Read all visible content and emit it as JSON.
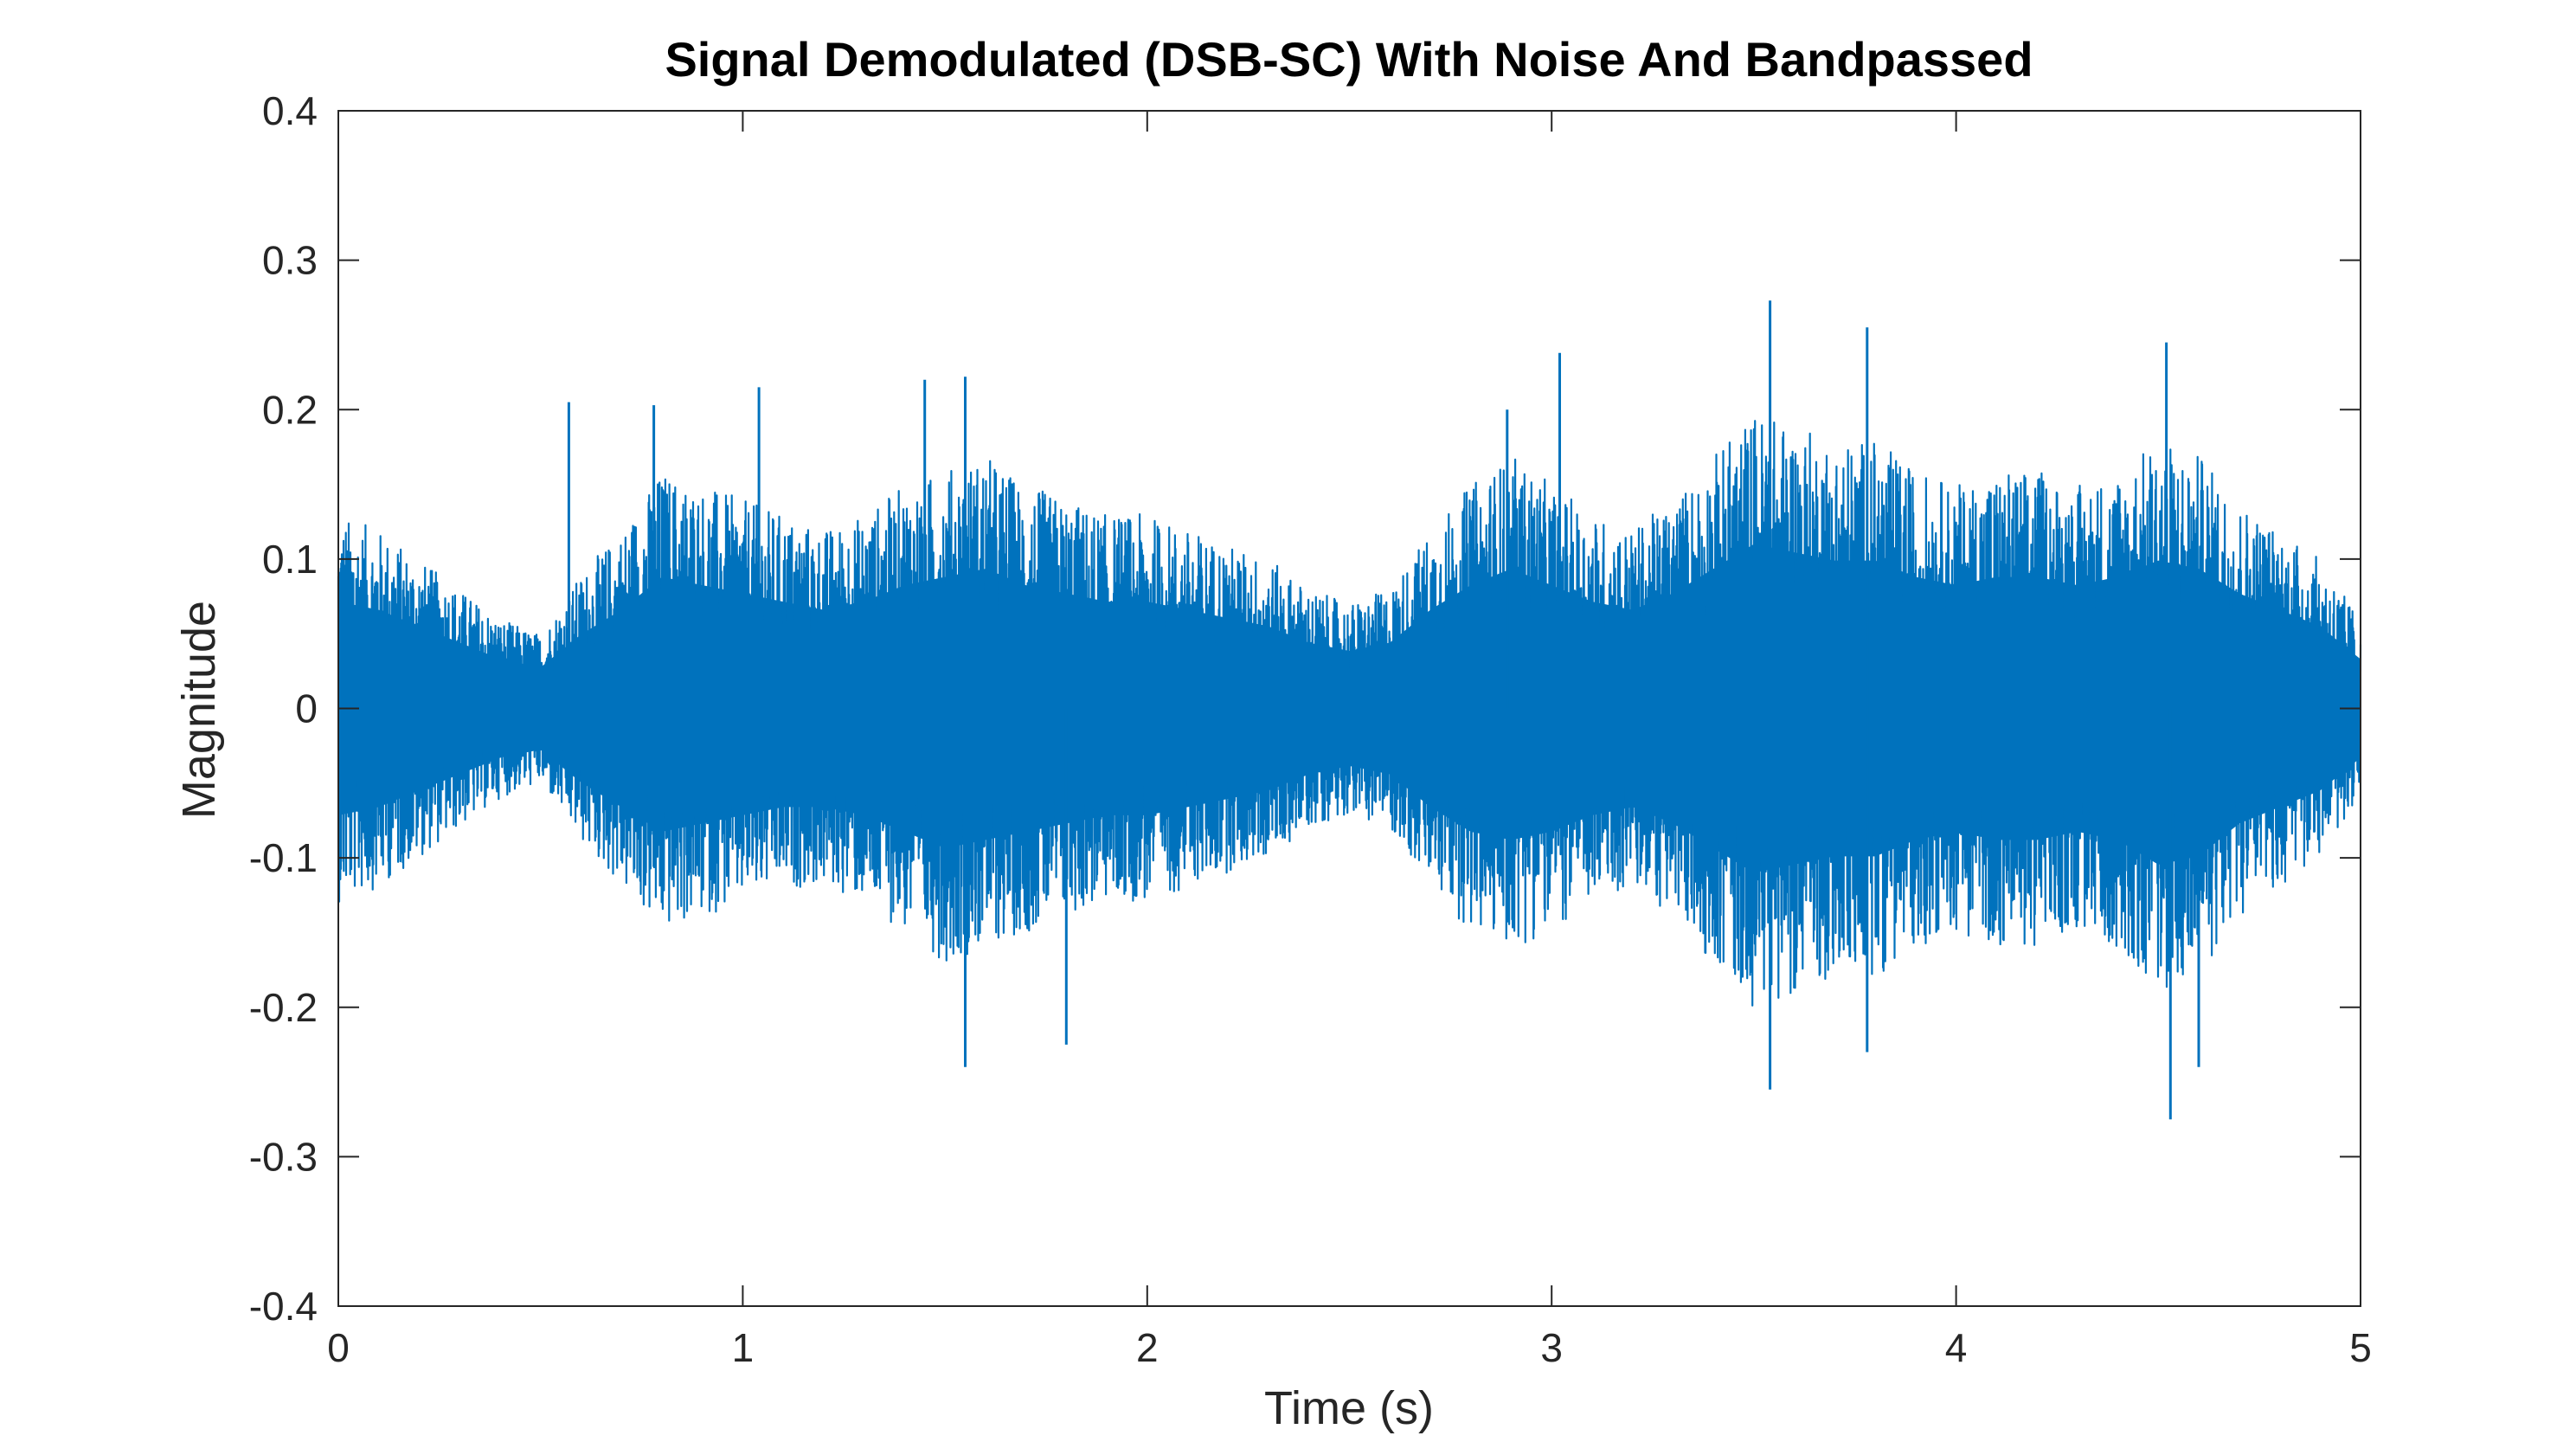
{
  "chart_data": {
    "type": "line",
    "title": "Signal Demodulated (DSB-SC) With Noise And Bandpassed",
    "xlabel": "Time (s)",
    "ylabel": "Magnitude",
    "xlim": [
      0,
      5
    ],
    "ylim": [
      -0.4,
      0.4
    ],
    "x_ticks": [
      0,
      1,
      2,
      3,
      4,
      5
    ],
    "x_tick_labels": [
      "0",
      "1",
      "2",
      "3",
      "4",
      "5"
    ],
    "y_ticks": [
      -0.4,
      -0.3,
      -0.2,
      -0.1,
      0,
      0.1,
      0.2,
      0.3,
      0.4
    ],
    "y_tick_labels": [
      "-0.4",
      "-0.3",
      "-0.2",
      "-0.1",
      "0",
      "0.1",
      "0.2",
      "0.3",
      "0.4"
    ],
    "grid": false,
    "box": true,
    "series": [
      {
        "color": "#0072BD",
        "envelope": {
          "t": [
            0.0,
            0.1,
            0.2,
            0.3,
            0.4,
            0.5,
            0.6,
            0.7,
            0.8,
            0.9,
            1.0,
            1.1,
            1.2,
            1.3,
            1.4,
            1.5,
            1.6,
            1.7,
            1.8,
            1.9,
            2.0,
            2.1,
            2.2,
            2.3,
            2.4,
            2.5,
            2.6,
            2.7,
            2.8,
            2.9,
            3.0,
            3.1,
            3.2,
            3.3,
            3.4,
            3.5,
            3.6,
            3.7,
            3.8,
            3.9,
            4.0,
            4.1,
            4.2,
            4.3,
            4.4,
            4.5,
            4.6,
            4.7,
            4.8,
            4.9,
            5.0
          ],
          "upper": [
            0.13,
            0.12,
            0.1,
            0.08,
            0.06,
            0.05,
            0.09,
            0.12,
            0.16,
            0.15,
            0.14,
            0.13,
            0.12,
            0.13,
            0.15,
            0.16,
            0.17,
            0.15,
            0.14,
            0.13,
            0.13,
            0.12,
            0.11,
            0.1,
            0.08,
            0.07,
            0.08,
            0.12,
            0.15,
            0.17,
            0.15,
            0.13,
            0.12,
            0.14,
            0.17,
            0.2,
            0.19,
            0.18,
            0.18,
            0.16,
            0.15,
            0.16,
            0.16,
            0.15,
            0.16,
            0.18,
            0.17,
            0.14,
            0.12,
            0.1,
            0.06
          ],
          "lower": [
            -0.13,
            -0.12,
            -0.1,
            -0.08,
            -0.06,
            -0.05,
            -0.09,
            -0.12,
            -0.15,
            -0.14,
            -0.13,
            -0.12,
            -0.12,
            -0.13,
            -0.15,
            -0.17,
            -0.16,
            -0.15,
            -0.14,
            -0.13,
            -0.13,
            -0.12,
            -0.11,
            -0.1,
            -0.08,
            -0.07,
            -0.08,
            -0.12,
            -0.15,
            -0.16,
            -0.15,
            -0.13,
            -0.12,
            -0.14,
            -0.17,
            -0.2,
            -0.19,
            -0.18,
            -0.18,
            -0.16,
            -0.15,
            -0.16,
            -0.16,
            -0.15,
            -0.16,
            -0.19,
            -0.18,
            -0.14,
            -0.12,
            -0.1,
            -0.06
          ]
        },
        "peaks": [
          {
            "t": 0.57,
            "y": 0.205
          },
          {
            "t": 0.78,
            "y": 0.203
          },
          {
            "t": 1.04,
            "y": 0.215
          },
          {
            "t": 1.45,
            "y": 0.22
          },
          {
            "t": 1.55,
            "y": 0.222
          },
          {
            "t": 2.89,
            "y": 0.2
          },
          {
            "t": 3.02,
            "y": 0.238
          },
          {
            "t": 3.54,
            "y": 0.273
          },
          {
            "t": 3.78,
            "y": 0.255
          },
          {
            "t": 4.52,
            "y": 0.245
          },
          {
            "t": 1.55,
            "y": -0.24
          },
          {
            "t": 1.8,
            "y": -0.225
          },
          {
            "t": 3.54,
            "y": -0.255
          },
          {
            "t": 3.78,
            "y": -0.23
          },
          {
            "t": 4.53,
            "y": -0.275
          },
          {
            "t": 4.6,
            "y": -0.24
          }
        ]
      }
    ]
  }
}
